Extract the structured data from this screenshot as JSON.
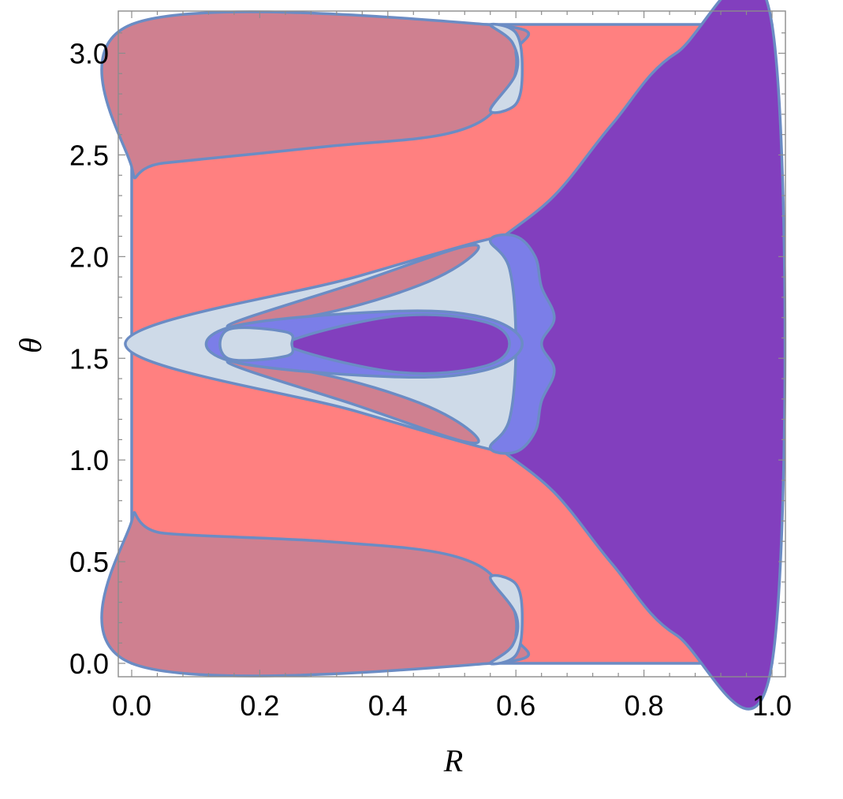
{
  "chart_data": {
    "type": "region-plot",
    "xlabel": "R",
    "ylabel": "θ",
    "xlim": [
      0.0,
      1.0
    ],
    "ylim": [
      0.0,
      3.14159
    ],
    "x_ticks": [
      "0.0",
      "0.2",
      "0.4",
      "0.6",
      "0.8",
      "1.0"
    ],
    "x_tick_values": [
      0.0,
      0.2,
      0.4,
      0.6,
      0.8,
      1.0
    ],
    "y_ticks": [
      "0.0",
      "0.5",
      "1.0",
      "1.5",
      "2.0",
      "2.5",
      "3.0"
    ],
    "y_tick_values": [
      0.0,
      0.5,
      1.0,
      1.5,
      2.0,
      2.5,
      3.0
    ],
    "grid": false,
    "colors": {
      "background_region": "#ff8080",
      "upper_lobe": "#cf8090",
      "lower_lobe": "#cf8090",
      "right_region": "#823fbe",
      "central_region": "#cedae8",
      "inner_band": "#7b7ee8",
      "inner_core": "#823fbe",
      "boundary": "#6b8cc4"
    },
    "regions": [
      {
        "name": "upper-left lobe",
        "points": [
          [
            0.0,
            3.142
          ],
          [
            0.56,
            3.14
          ],
          [
            0.6,
            3.0
          ],
          [
            0.58,
            2.77
          ],
          [
            0.5,
            2.61
          ],
          [
            0.3,
            2.54
          ],
          [
            0.05,
            2.46
          ],
          [
            0.0,
            2.44
          ]
        ]
      },
      {
        "name": "upper-left lobe rim",
        "points": [
          [
            0.56,
            3.14
          ],
          [
            0.6,
            3.1
          ],
          [
            0.61,
            2.92
          ],
          [
            0.6,
            2.75
          ],
          [
            0.56,
            2.72
          ],
          [
            0.6,
            2.9
          ],
          [
            0.595,
            3.05
          ]
        ]
      },
      {
        "name": "lower-left lobe",
        "points": [
          [
            0.0,
            0.0
          ],
          [
            0.56,
            0.0
          ],
          [
            0.6,
            0.14
          ],
          [
            0.58,
            0.37
          ],
          [
            0.5,
            0.53
          ],
          [
            0.3,
            0.6
          ],
          [
            0.05,
            0.64
          ],
          [
            0.0,
            0.7
          ]
        ]
      },
      {
        "name": "lower-left lobe rim",
        "points": [
          [
            0.56,
            0.0
          ],
          [
            0.6,
            0.04
          ],
          [
            0.61,
            0.22
          ],
          [
            0.6,
            0.39
          ],
          [
            0.56,
            0.42
          ],
          [
            0.6,
            0.24
          ],
          [
            0.595,
            0.09
          ]
        ]
      },
      {
        "name": "right region",
        "points": [
          [
            1.0,
            3.142
          ],
          [
            0.85,
            3.0
          ],
          [
            0.75,
            2.65
          ],
          [
            0.66,
            2.3
          ],
          [
            0.57,
            2.07
          ],
          [
            0.565,
            2.0
          ],
          [
            0.59,
            1.86
          ],
          [
            0.62,
            1.7
          ],
          [
            0.6,
            1.57
          ],
          [
            0.62,
            1.44
          ],
          [
            0.59,
            1.28
          ],
          [
            0.565,
            1.14
          ],
          [
            0.57,
            1.07
          ],
          [
            0.66,
            0.84
          ],
          [
            0.75,
            0.49
          ],
          [
            0.85,
            0.14
          ],
          [
            1.0,
            0.0
          ]
        ]
      },
      {
        "name": "central region",
        "points": [
          [
            -0.01,
            1.571
          ],
          [
            0.35,
            1.9
          ],
          [
            0.55,
            2.08
          ],
          [
            0.58,
            2.08
          ],
          [
            0.6,
            1.95
          ],
          [
            0.6,
            1.571
          ],
          [
            0.6,
            1.19
          ],
          [
            0.58,
            1.06
          ],
          [
            0.55,
            1.06
          ],
          [
            0.35,
            1.24
          ]
        ]
      },
      {
        "name": "upper sliver",
        "points": [
          [
            0.15,
            1.66
          ],
          [
            0.35,
            1.87
          ],
          [
            0.52,
            2.05
          ],
          [
            0.53,
            2.0
          ],
          [
            0.45,
            1.86
          ],
          [
            0.3,
            1.72
          ]
        ]
      },
      {
        "name": "lower sliver",
        "points": [
          [
            0.15,
            1.48
          ],
          [
            0.35,
            1.27
          ],
          [
            0.52,
            1.09
          ],
          [
            0.53,
            1.14
          ],
          [
            0.45,
            1.28
          ],
          [
            0.3,
            1.42
          ]
        ]
      },
      {
        "name": "outer wing band",
        "points": [
          [
            0.56,
            2.08
          ],
          [
            0.6,
            2.1
          ],
          [
            0.63,
            2.0
          ],
          [
            0.64,
            1.85
          ],
          [
            0.66,
            1.7
          ],
          [
            0.64,
            1.571
          ],
          [
            0.66,
            1.44
          ],
          [
            0.64,
            1.29
          ],
          [
            0.63,
            1.14
          ],
          [
            0.6,
            1.04
          ],
          [
            0.56,
            1.06
          ],
          [
            0.59,
            1.2
          ],
          [
            0.6,
            1.571
          ],
          [
            0.59,
            1.94
          ]
        ]
      },
      {
        "name": "inner band",
        "points": [
          [
            0.15,
            1.65
          ],
          [
            0.4,
            1.73
          ],
          [
            0.55,
            1.7
          ],
          [
            0.61,
            1.571
          ],
          [
            0.55,
            1.44
          ],
          [
            0.4,
            1.41
          ],
          [
            0.15,
            1.49
          ]
        ]
      },
      {
        "name": "inner core",
        "points": [
          [
            0.26,
            1.6
          ],
          [
            0.42,
            1.71
          ],
          [
            0.55,
            1.68
          ],
          [
            0.59,
            1.571
          ],
          [
            0.55,
            1.46
          ],
          [
            0.42,
            1.43
          ],
          [
            0.26,
            1.54
          ]
        ]
      },
      {
        "name": "small left lobe",
        "points": [
          [
            0.15,
            1.64
          ],
          [
            0.24,
            1.63
          ],
          [
            0.25,
            1.571
          ],
          [
            0.24,
            1.51
          ],
          [
            0.15,
            1.5
          ]
        ]
      }
    ]
  }
}
